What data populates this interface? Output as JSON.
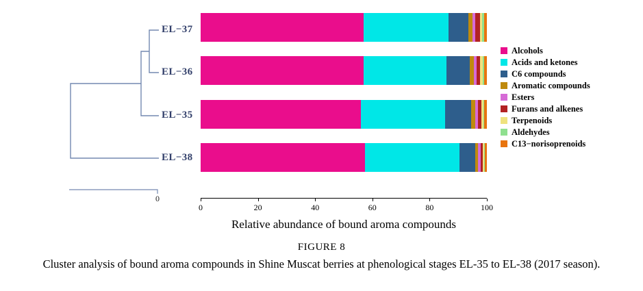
{
  "figure": {
    "caption_title": "FIGURE 8",
    "caption": "Cluster analysis of bound aroma compounds in Shine Muscat berries at phenological stages EL-35 to EL-38 (2017 season)."
  },
  "chart_data": {
    "type": "bar",
    "orientation": "horizontal",
    "stacked": true,
    "title": "",
    "xlabel": "Relative abundance of bound aroma compounds",
    "ylabel": "",
    "xlim": [
      0,
      100
    ],
    "xticks": [
      0,
      20,
      40,
      60,
      80,
      100
    ],
    "grid": false,
    "legend_position": "right",
    "categories": [
      "EL−37",
      "EL−36",
      "EL−35",
      "EL−38"
    ],
    "series": [
      {
        "name": "Alcohols",
        "color": "#EA0D8C",
        "values": [
          57.0,
          57.0,
          56.0,
          57.5
        ]
      },
      {
        "name": "Acids and ketones",
        "color": "#00E7E7",
        "values": [
          29.5,
          29.0,
          29.5,
          33.0
        ]
      },
      {
        "name": "C6 compounds",
        "color": "#2E5E8C",
        "values": [
          7.0,
          8.0,
          9.0,
          5.5
        ]
      },
      {
        "name": "Aromatic compounds",
        "color": "#BF8A0D",
        "values": [
          1.5,
          1.5,
          1.5,
          1.0
        ]
      },
      {
        "name": "Esters",
        "color": "#D66BD6",
        "values": [
          1.0,
          1.0,
          1.0,
          0.8
        ]
      },
      {
        "name": "Furans and alkenes",
        "color": "#B22222",
        "values": [
          1.5,
          1.2,
          1.0,
          0.7
        ]
      },
      {
        "name": "Terpenoids",
        "color": "#EFE27E",
        "values": [
          0.8,
          0.8,
          0.7,
          0.5
        ]
      },
      {
        "name": "Aldehydes",
        "color": "#8FE08F",
        "values": [
          0.7,
          0.5,
          0.3,
          0.3
        ]
      },
      {
        "name": "C13−norisoprenoids",
        "color": "#E8740E",
        "values": [
          1.0,
          1.0,
          1.0,
          0.7
        ]
      }
    ],
    "dendrogram": {
      "leaves_top_to_bottom": [
        "EL−37",
        "EL−36",
        "EL−35",
        "EL−38"
      ],
      "linkage_order": [
        [
          "EL−37",
          "EL−36"
        ],
        [
          [
            "EL−37",
            "EL−36"
          ],
          "EL−35"
        ],
        [
          [
            [
              "EL−37",
              "EL−36"
            ],
            "EL−35"
          ],
          "EL−38"
        ]
      ],
      "scale_label": "0",
      "line_color": "#7388B0",
      "label_color": "#33406B"
    }
  }
}
